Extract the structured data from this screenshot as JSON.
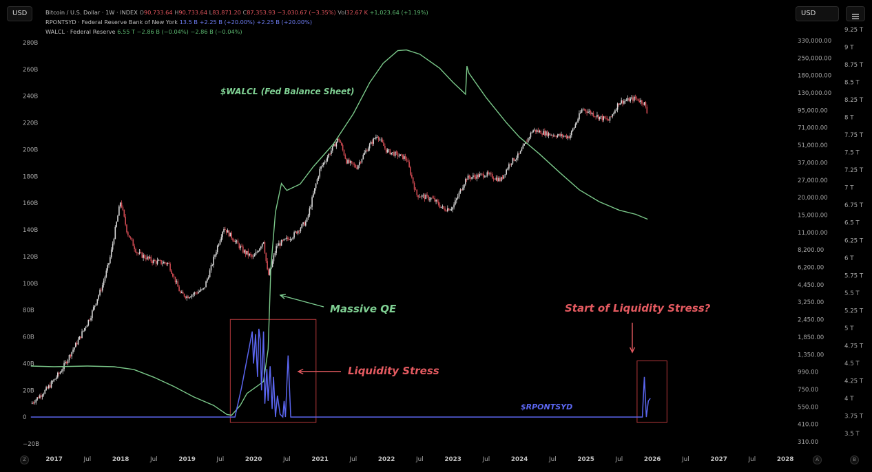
{
  "toolbar": {
    "left_currency": "USD",
    "right_currency": "USD"
  },
  "legend": {
    "btc": {
      "name": "Bitcoin / U.S. Dollar · 1W · INDEX",
      "o_key": "O",
      "o_val": "90,733.64",
      "h_key": "H",
      "h_val": "90,733.64",
      "l_key": "L",
      "l_val": "83,871.20",
      "c_key": "C",
      "c_val": "87,353.93",
      "chg": "−3,030.67 (−3.35%)",
      "vol_key": "Vol",
      "vol_val": "32.67 K",
      "vol_chg": "+1,023.64 (+1.19%)"
    },
    "rpontsyd": {
      "name": "RPONTSYD · Federal Reserve Bank of New York",
      "v1": "13.5 B",
      "v2": "+2.25 B (+20.00%)",
      "v3": "+2.25 B (+20.00%)"
    },
    "walcl": {
      "name": "WALCL · Federal Reserve",
      "v1": "6.55 T",
      "v2": "−2.86 B (−0.04%)",
      "v3": "−2.86 B (−0.04%)"
    }
  },
  "corner_buttons": {
    "left": "Z",
    "mid": "A",
    "right": "B"
  },
  "colors": {
    "background": "#000000",
    "btc_up": "#d8d8d8",
    "btc_down": "#d04a52",
    "walcl": "#7bc98a",
    "rpontsyd": "#5b66f0",
    "stress_box": "#b8393d",
    "annotation_red": "#e45a60",
    "annotation_green": "#7fd093"
  },
  "chart_data": {
    "type": "line",
    "title": "",
    "axes": {
      "left": {
        "series": "RPONTSYD",
        "ticks": [
          "280B",
          "260B",
          "240B",
          "220B",
          "200B",
          "180B",
          "160B",
          "140B",
          "120B",
          "100B",
          "80B",
          "60B",
          "40B",
          "20B",
          "0",
          "−20B"
        ],
        "ylim": [
          -20,
          280
        ],
        "unit": "B"
      },
      "right_inner": {
        "series": "Bitcoin / U.S. Dollar",
        "scale": "log",
        "ticks": [
          "330,000.00",
          "250,000.00",
          "180,000.00",
          "130,000.00",
          "95,000.00",
          "71,000.00",
          "51,000.00",
          "37,000.00",
          "27,000.00",
          "20,000.00",
          "15,000.00",
          "11,000.00",
          "8,200.00",
          "6,200.00",
          "4,450.00",
          "3,250.00",
          "2,450.00",
          "1,850.00",
          "1,350.00",
          "990.00",
          "750.00",
          "550.00",
          "410.00",
          "310.00"
        ]
      },
      "right_outer": {
        "series": "WALCL",
        "ticks": [
          "9.25 T",
          "9 T",
          "8.75 T",
          "8.5 T",
          "8.25 T",
          "8 T",
          "7.75 T",
          "7.5 T",
          "7.25 T",
          "7 T",
          "6.75 T",
          "6.5 T",
          "6.25 T",
          "6 T",
          "5.75 T",
          "5.5 T",
          "5.25 T",
          "5 T",
          "4.75 T",
          "4.5 T",
          "4.25 T",
          "4 T",
          "3.75 T",
          "3.5 T"
        ],
        "ylim": [
          3.5,
          9.25
        ]
      },
      "x": {
        "labels": [
          {
            "t": "2017",
            "year": true
          },
          {
            "t": "Jul",
            "year": false
          },
          {
            "t": "2018",
            "year": true
          },
          {
            "t": "Jul",
            "year": false
          },
          {
            "t": "2019",
            "year": true
          },
          {
            "t": "Jul",
            "year": false
          },
          {
            "t": "2020",
            "year": true
          },
          {
            "t": "Jul",
            "year": false
          },
          {
            "t": "2021",
            "year": true
          },
          {
            "t": "Jul",
            "year": false
          },
          {
            "t": "2022",
            "year": true
          },
          {
            "t": "Jul",
            "year": false
          },
          {
            "t": "2023",
            "year": true
          },
          {
            "t": "Jul",
            "year": false
          },
          {
            "t": "2024",
            "year": true
          },
          {
            "t": "Jul",
            "year": false
          },
          {
            "t": "2025",
            "year": true
          },
          {
            "t": "Jul",
            "year": false
          },
          {
            "t": "2026",
            "year": true
          },
          {
            "t": "Jul",
            "year": false
          },
          {
            "t": "2027",
            "year": true
          },
          {
            "t": "Jul",
            "year": false
          },
          {
            "t": "2028",
            "year": true
          },
          {
            "t": "Ju",
            "year": false
          }
        ],
        "xlim": [
          2016.6,
          2028.6
        ]
      }
    },
    "series": [
      {
        "name": "WALCL",
        "axis": "right_outer",
        "points": [
          [
            2016.65,
            4.46
          ],
          [
            2017.0,
            4.45
          ],
          [
            2017.5,
            4.46
          ],
          [
            2017.9,
            4.45
          ],
          [
            2018.2,
            4.41
          ],
          [
            2018.5,
            4.3
          ],
          [
            2018.8,
            4.17
          ],
          [
            2019.1,
            4.02
          ],
          [
            2019.4,
            3.9
          ],
          [
            2019.6,
            3.77
          ],
          [
            2019.67,
            3.76
          ],
          [
            2019.8,
            3.9
          ],
          [
            2019.9,
            4.07
          ],
          [
            2020.05,
            4.17
          ],
          [
            2020.15,
            4.24
          ],
          [
            2020.22,
            4.7
          ],
          [
            2020.26,
            5.85
          ],
          [
            2020.33,
            6.65
          ],
          [
            2020.42,
            7.06
          ],
          [
            2020.5,
            6.96
          ],
          [
            2020.7,
            7.05
          ],
          [
            2020.9,
            7.3
          ],
          [
            2021.2,
            7.62
          ],
          [
            2021.5,
            8.05
          ],
          [
            2021.75,
            8.5
          ],
          [
            2021.95,
            8.77
          ],
          [
            2022.17,
            8.95
          ],
          [
            2022.3,
            8.96
          ],
          [
            2022.5,
            8.9
          ],
          [
            2022.8,
            8.7
          ],
          [
            2023.0,
            8.5
          ],
          [
            2023.19,
            8.33
          ],
          [
            2023.21,
            8.73
          ],
          [
            2023.24,
            8.63
          ],
          [
            2023.5,
            8.28
          ],
          [
            2023.8,
            7.93
          ],
          [
            2024.0,
            7.72
          ],
          [
            2024.3,
            7.48
          ],
          [
            2024.6,
            7.22
          ],
          [
            2024.9,
            6.97
          ],
          [
            2025.2,
            6.8
          ],
          [
            2025.5,
            6.68
          ],
          [
            2025.75,
            6.62
          ],
          [
            2025.93,
            6.55
          ]
        ]
      },
      {
        "name": "RPONTSYD",
        "axis": "left",
        "points": [
          [
            2016.65,
            0
          ],
          [
            2019.5,
            0
          ],
          [
            2019.72,
            0
          ],
          [
            2019.82,
            22
          ],
          [
            2019.98,
            64
          ],
          [
            2020.0,
            40
          ],
          [
            2020.03,
            62
          ],
          [
            2020.06,
            30
          ],
          [
            2020.08,
            66
          ],
          [
            2020.1,
            58
          ],
          [
            2020.12,
            20
          ],
          [
            2020.15,
            64
          ],
          [
            2020.17,
            10
          ],
          [
            2020.2,
            36
          ],
          [
            2020.22,
            12
          ],
          [
            2020.25,
            38
          ],
          [
            2020.28,
            6
          ],
          [
            2020.3,
            30
          ],
          [
            2020.33,
            0
          ],
          [
            2020.36,
            16
          ],
          [
            2020.4,
            2
          ],
          [
            2020.44,
            0
          ],
          [
            2020.46,
            12
          ],
          [
            2020.48,
            0
          ],
          [
            2020.52,
            46
          ],
          [
            2020.56,
            0
          ],
          [
            2025.8,
            0
          ],
          [
            2025.85,
            0
          ],
          [
            2025.88,
            30
          ],
          [
            2025.91,
            0
          ],
          [
            2025.94,
            12
          ],
          [
            2025.97,
            14
          ]
        ]
      },
      {
        "name": "Bitcoin / U.S. Dollar",
        "axis": "right_inner",
        "type": "candlestick",
        "close_anchors": [
          [
            2016.65,
            580
          ],
          [
            2016.9,
            760
          ],
          [
            2017.1,
            1000
          ],
          [
            2017.35,
            1700
          ],
          [
            2017.55,
            2600
          ],
          [
            2017.72,
            4300
          ],
          [
            2017.85,
            7500
          ],
          [
            2017.96,
            15000
          ],
          [
            2018.0,
            19000
          ],
          [
            2018.1,
            11000
          ],
          [
            2018.25,
            7800
          ],
          [
            2018.5,
            6800
          ],
          [
            2018.72,
            6600
          ],
          [
            2018.9,
            3800
          ],
          [
            2019.0,
            3600
          ],
          [
            2019.25,
            4100
          ],
          [
            2019.45,
            8500
          ],
          [
            2019.55,
            12000
          ],
          [
            2019.7,
            9800
          ],
          [
            2019.85,
            8000
          ],
          [
            2020.0,
            7200
          ],
          [
            2020.15,
            9600
          ],
          [
            2020.22,
            5200
          ],
          [
            2020.35,
            8800
          ],
          [
            2020.6,
            10500
          ],
          [
            2020.8,
            13500
          ],
          [
            2021.0,
            33000
          ],
          [
            2021.28,
            58000
          ],
          [
            2021.4,
            38000
          ],
          [
            2021.55,
            34000
          ],
          [
            2021.7,
            47000
          ],
          [
            2021.86,
            62000
          ],
          [
            2022.0,
            46000
          ],
          [
            2022.3,
            40000
          ],
          [
            2022.45,
            21000
          ],
          [
            2022.7,
            19500
          ],
          [
            2022.86,
            16500
          ],
          [
            2023.0,
            17000
          ],
          [
            2023.2,
            28000
          ],
          [
            2023.5,
            30000
          ],
          [
            2023.72,
            27000
          ],
          [
            2023.86,
            37000
          ],
          [
            2024.0,
            43000
          ],
          [
            2024.2,
            68000
          ],
          [
            2024.5,
            62000
          ],
          [
            2024.75,
            60000
          ],
          [
            2024.95,
            98000
          ],
          [
            2025.2,
            85000
          ],
          [
            2025.35,
            80000
          ],
          [
            2025.5,
            110000
          ],
          [
            2025.75,
            118000
          ],
          [
            2025.88,
            108000
          ],
          [
            2025.93,
            87353
          ]
        ]
      }
    ],
    "annotations": [
      {
        "text": "$WALCL (Fed Balance Sheet)",
        "color": "green"
      },
      {
        "text": "Massive QE",
        "color": "green"
      },
      {
        "text": "Liquidity Stress",
        "color": "red"
      },
      {
        "text": "Start of Liquidity Stress?",
        "color": "red"
      },
      {
        "text": "$RPONTSYD",
        "color": "blue"
      }
    ]
  }
}
